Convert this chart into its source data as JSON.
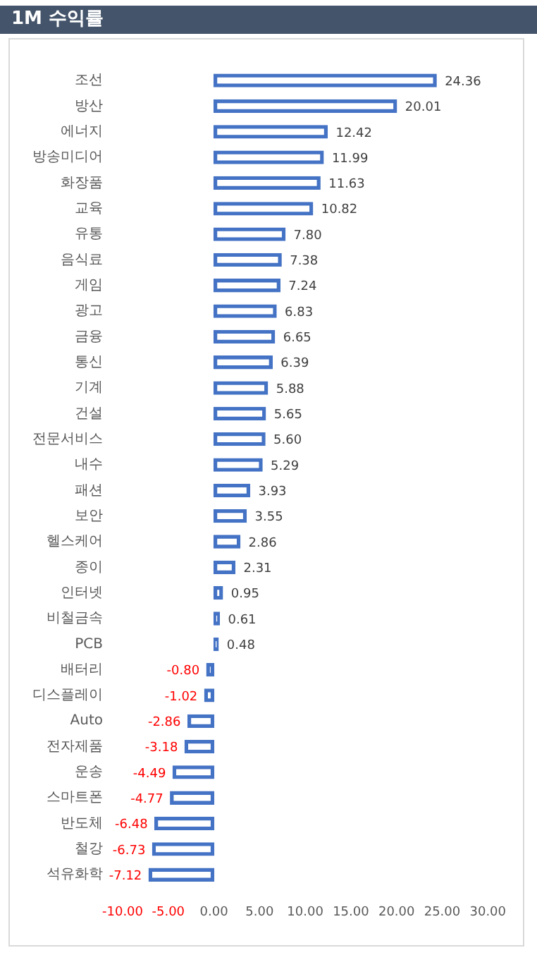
{
  "chart_data": {
    "type": "bar",
    "orientation": "horizontal",
    "title": "1M 수익률",
    "categories": [
      "조선",
      "방산",
      "에너지",
      "방송미디어",
      "화장품",
      "교육",
      "유통",
      "음식료",
      "게임",
      "광고",
      "금융",
      "통신",
      "기계",
      "건설",
      "전문서비스",
      "내수",
      "패션",
      "보안",
      "헬스케어",
      "종이",
      "인터넷",
      "비철금속",
      "PCB",
      "배터리",
      "디스플레이",
      "Auto",
      "전자제품",
      "운송",
      "스마트폰",
      "반도체",
      "철강",
      "석유화학"
    ],
    "values": [
      24.36,
      20.01,
      12.42,
      11.99,
      11.63,
      10.82,
      7.8,
      7.38,
      7.24,
      6.83,
      6.65,
      6.39,
      5.88,
      5.65,
      5.6,
      5.29,
      3.93,
      3.55,
      2.86,
      2.31,
      0.95,
      0.61,
      0.48,
      -0.8,
      -1.02,
      -2.86,
      -3.18,
      -4.49,
      -4.77,
      -6.48,
      -6.73,
      -7.12
    ],
    "value_labels": [
      "24.36",
      "20.01",
      "12.42",
      "11.99",
      "11.63",
      "10.82",
      "7.80",
      "7.38",
      "7.24",
      "6.83",
      "6.65",
      "6.39",
      "5.88",
      "5.65",
      "5.60",
      "5.29",
      "3.93",
      "3.55",
      "2.86",
      "2.31",
      "0.95",
      "0.61",
      "0.48",
      "-0.80",
      "-1.02",
      "-2.86",
      "-3.18",
      "-4.49",
      "-4.77",
      "-6.48",
      "-6.73",
      "-7.12"
    ],
    "color": "#4472c4",
    "xlim": [
      -10,
      30
    ],
    "xticks": [
      {
        "value": -10,
        "label": "-10.00"
      },
      {
        "value": -5,
        "label": "-5.00"
      },
      {
        "value": 0,
        "label": "0.00"
      },
      {
        "value": 5,
        "label": "5.00"
      },
      {
        "value": 10,
        "label": "10.00"
      },
      {
        "value": 15,
        "label": "15.00"
      },
      {
        "value": 20,
        "label": "20.00"
      },
      {
        "value": 25,
        "label": "25.00"
      },
      {
        "value": 30,
        "label": "30.00"
      }
    ],
    "grid": false,
    "legend": false
  }
}
